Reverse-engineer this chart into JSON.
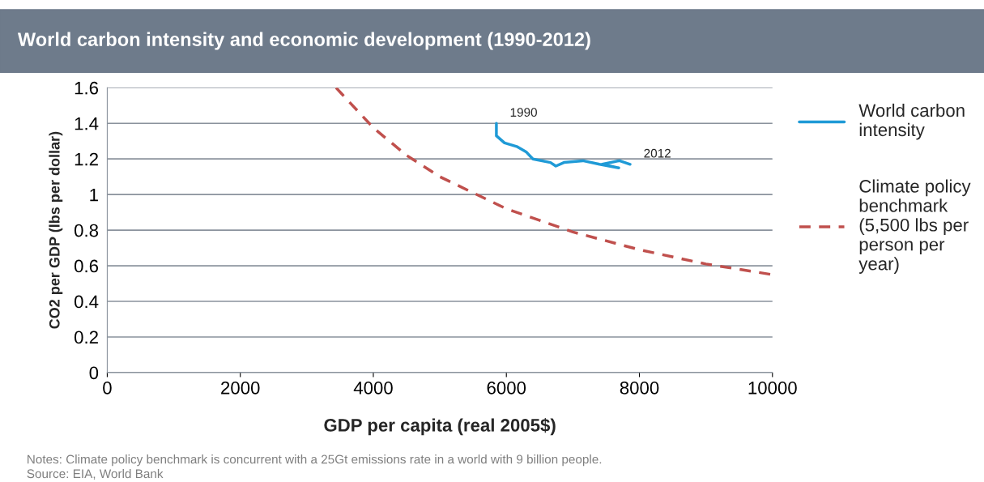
{
  "chart_data": {
    "type": "line",
    "title": "World carbon intensity and economic development (1990-2012)",
    "xlabel": "GDP per capita (real 2005$)",
    "ylabel": "CO2 per GDP (lbs per dollar)",
    "series": [
      {
        "name": "World carbon intensity",
        "color": "#1f9ad6",
        "line_style": "solid",
        "x": [
          5850,
          5850,
          5972,
          6155,
          6297,
          6398,
          6663,
          6744,
          6866,
          7150,
          7400,
          7690,
          7440,
          7700,
          7860
        ],
        "values": [
          1.4,
          1.33,
          1.29,
          1.27,
          1.24,
          1.2,
          1.18,
          1.16,
          1.18,
          1.19,
          1.17,
          1.15,
          1.17,
          1.19,
          1.17
        ]
      },
      {
        "name": "Climate policy benchmark (5,500 lbs per person per year)",
        "color": "#c0504d",
        "line_style": "dashed",
        "x": [
          3440,
          4000,
          4500,
          5000,
          6000,
          7000,
          8000,
          9000,
          10000
        ],
        "values": [
          1.6,
          1.375,
          1.22,
          1.1,
          0.92,
          0.79,
          0.69,
          0.61,
          0.55
        ]
      }
    ],
    "xlim": [
      0,
      10000
    ],
    "xticks": [
      0,
      2000,
      4000,
      6000,
      8000,
      10000
    ],
    "ylim": [
      0,
      1.6
    ],
    "yticks": [
      0,
      0.2,
      0.4,
      0.6,
      0.8,
      1,
      1.2,
      1.4,
      1.6
    ],
    "grid": "y",
    "legend": "right",
    "marker": "none",
    "annotations": [
      {
        "text": "1990",
        "x": 5850,
        "y": 1.4
      },
      {
        "text": "2012",
        "x": 7860,
        "y": 1.17
      },
      "Notes: Climate policy benchmark is concurrent with a 25Gt emissions rate in a world with 9 billion people.",
      "Source: EIA, World Bank"
    ]
  }
}
